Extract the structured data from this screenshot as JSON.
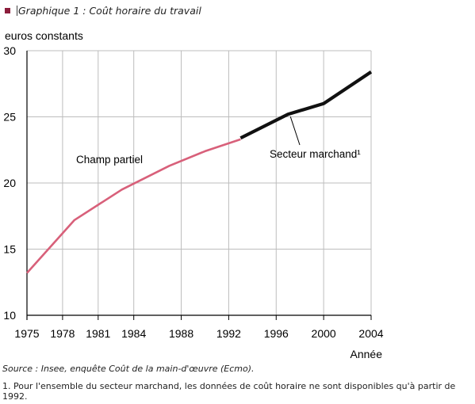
{
  "caption": "Graphique 1 : Coût horaire du travail",
  "source": "Source : Insee, enquête Coût de la main-d'œuvre (Ecmo).",
  "footnote": "1. Pour l'ensemble du secteur marchand, les données de coût horaire ne sont disponibles qu'à partir de 1992.",
  "colors": {
    "bullet": "#8c1d3c",
    "champ_partiel": "#d8607a",
    "secteur_marchand": "#111111",
    "grid": "#bdbdbd"
  },
  "chart_data": {
    "type": "line",
    "title": "",
    "ylabel": "euros constants",
    "xlabel": "Année",
    "xlim": [
      1975,
      2004
    ],
    "ylim": [
      10,
      30
    ],
    "x_ticks": [
      1975,
      1978,
      1981,
      1984,
      1988,
      1992,
      1996,
      2000,
      2004
    ],
    "y_ticks": [
      10,
      15,
      20,
      25,
      30
    ],
    "grid": true,
    "series": [
      {
        "name": "Champ partiel",
        "color": "#d8607a",
        "points": [
          [
            1975,
            13.2
          ],
          [
            1979,
            17.2
          ],
          [
            1983,
            19.5
          ],
          [
            1987,
            21.3
          ],
          [
            1990,
            22.4
          ],
          [
            1993,
            23.3
          ]
        ]
      },
      {
        "name": "Secteur marchand¹",
        "color": "#111111",
        "points": [
          [
            1993,
            23.4
          ],
          [
            1997,
            25.2
          ],
          [
            2000,
            26.0
          ],
          [
            2004,
            28.4
          ]
        ]
      }
    ]
  }
}
